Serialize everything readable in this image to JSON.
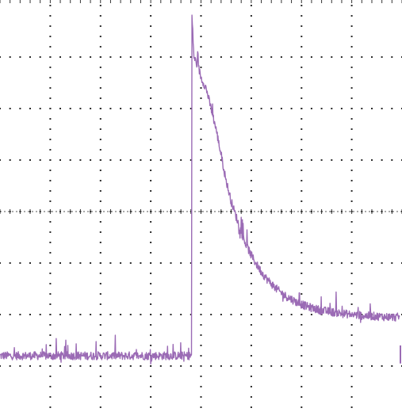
{
  "chart_data": {
    "type": "line",
    "title": "",
    "xlabel": "",
    "ylabel": "",
    "grid": true,
    "grid_style": "dotted",
    "grid_divisions": {
      "x": 8,
      "y": 8
    },
    "xlim": [
      0,
      8
    ],
    "ylim": [
      -4,
      4
    ],
    "series": [
      {
        "color": "#9b6bb5",
        "noisy": true,
        "x": [
          0,
          0.5,
          1,
          1.5,
          2,
          2.5,
          3,
          3.5,
          3.81,
          3.82,
          3.86,
          3.9,
          3.95,
          4.0,
          4.05,
          4.1,
          4.2,
          4.3,
          4.4,
          4.5,
          4.6,
          4.7,
          4.8,
          4.9,
          5.0,
          5.1,
          5.2,
          5.3,
          5.4,
          5.5,
          5.6,
          5.7,
          5.8,
          5.9,
          6.0,
          6.1,
          6.2,
          6.4,
          6.6,
          6.8,
          7.0,
          7.2,
          7.4,
          7.6,
          7.8,
          7.95
        ],
        "y": [
          -2.8,
          -2.8,
          -2.8,
          -2.8,
          -2.8,
          -2.8,
          -2.8,
          -2.8,
          -2.8,
          3.8,
          3.0,
          2.9,
          2.8,
          2.6,
          2.5,
          2.4,
          2.0,
          1.6,
          1.1,
          0.6,
          0.2,
          -0.1,
          -0.4,
          -0.65,
          -0.85,
          -1.02,
          -1.17,
          -1.3,
          -1.4,
          -1.5,
          -1.58,
          -1.65,
          -1.7,
          -1.76,
          -1.8,
          -1.84,
          -1.87,
          -1.92,
          -1.95,
          -1.98,
          -2.0,
          -2.02,
          -2.03,
          -2.04,
          -2.05,
          -2.05
        ]
      }
    ]
  }
}
